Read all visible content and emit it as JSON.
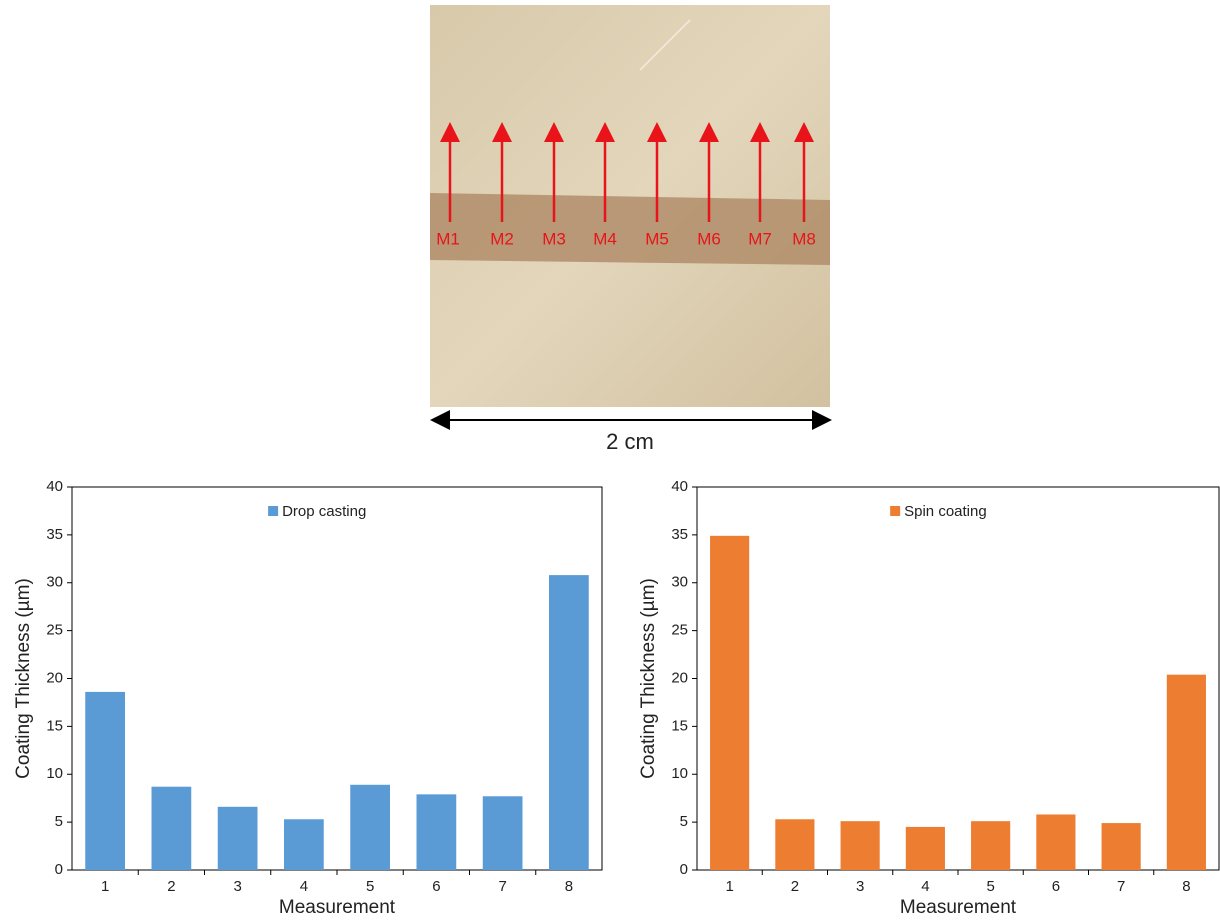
{
  "image": {
    "labels": [
      "M1",
      "M2",
      "M3",
      "M4",
      "M5",
      "M6",
      "M7",
      "M8"
    ],
    "scale_label": "2 cm"
  },
  "chart_data": [
    {
      "type": "bar",
      "x_label": "Measurement",
      "y_label": "Coating Thickness (µm)",
      "categories": [
        "1",
        "2",
        "3",
        "4",
        "5",
        "6",
        "7",
        "8"
      ],
      "series": [
        {
          "name": "Drop casting",
          "color": "#5b9bd5",
          "values": [
            18.6,
            8.7,
            6.6,
            5.3,
            8.9,
            7.9,
            7.7,
            30.8
          ]
        }
      ],
      "ylim": [
        0,
        40
      ],
      "yticks": [
        0,
        5,
        10,
        15,
        20,
        25,
        30,
        35,
        40
      ],
      "legend": "top"
    },
    {
      "type": "bar",
      "x_label": "Measurement",
      "y_label": "Coating Thickness (µm)",
      "categories": [
        "1",
        "2",
        "3",
        "4",
        "5",
        "6",
        "7",
        "8"
      ],
      "series": [
        {
          "name": "Spin coating",
          "color": "#ed7d31",
          "values": [
            34.9,
            5.3,
            5.1,
            4.5,
            5.1,
            5.8,
            4.9,
            20.4
          ]
        }
      ],
      "ylim": [
        0,
        40
      ],
      "yticks": [
        0,
        5,
        10,
        15,
        20,
        25,
        30,
        35,
        40
      ],
      "legend": "top"
    }
  ]
}
